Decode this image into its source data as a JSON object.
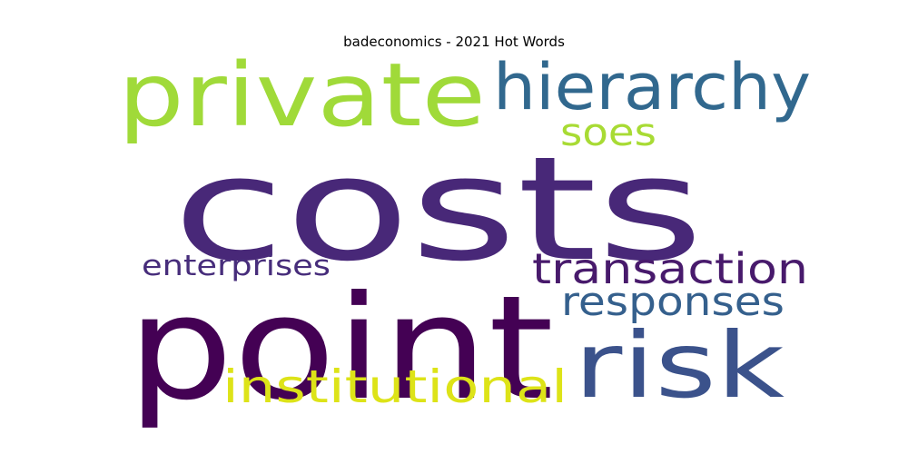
{
  "chart_data": {
    "type": "wordcloud",
    "title": "badeconomics - 2021 Hot Words",
    "words": [
      {
        "text": "costs",
        "color": "#482878"
      },
      {
        "text": "point",
        "color": "#440154"
      },
      {
        "text": "private",
        "color": "#a0da39"
      },
      {
        "text": "hierarchy",
        "color": "#31688e"
      },
      {
        "text": "risk",
        "color": "#3b528b"
      },
      {
        "text": "transaction",
        "color": "#481a6c"
      },
      {
        "text": "responses",
        "color": "#35608d"
      },
      {
        "text": "institutional",
        "color": "#dde318"
      },
      {
        "text": "soes",
        "color": "#a8db34"
      },
      {
        "text": "enterprises",
        "color": "#472d7b"
      }
    ]
  }
}
